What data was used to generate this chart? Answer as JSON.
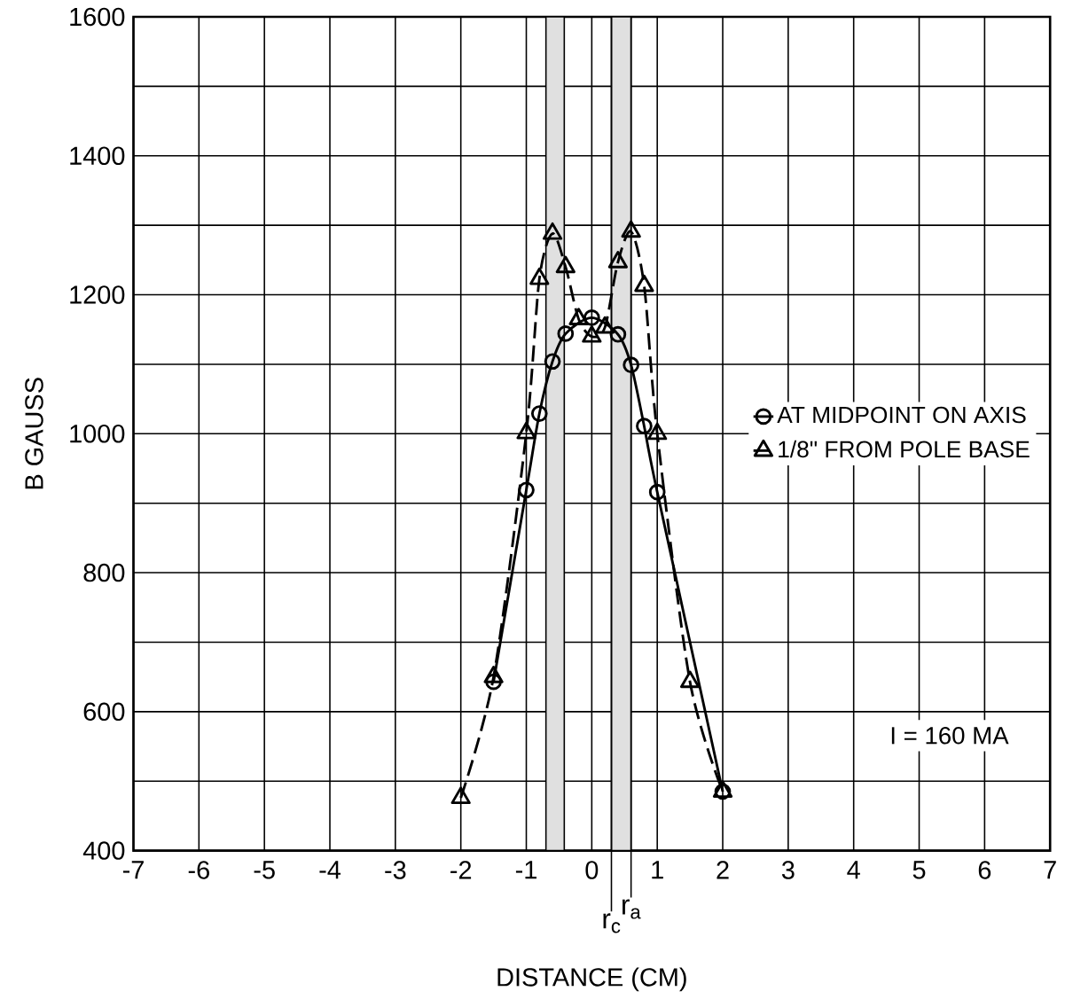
{
  "chart_data": {
    "type": "line",
    "xlabel": "DISTANCE (CM)",
    "ylabel": "B GAUSS",
    "xlim": [
      -7,
      7
    ],
    "ylim": [
      400,
      1600
    ],
    "xticks": [
      -7,
      -6,
      -5,
      -4,
      -3,
      -2,
      -1,
      0,
      1,
      2,
      3,
      4,
      5,
      6,
      7
    ],
    "yticks": [
      400,
      {
        "value": 500,
        "label": null
      },
      600,
      {
        "value": 700,
        "label": null
      },
      800,
      {
        "value": 900,
        "label": null
      },
      1000,
      {
        "value": 1100,
        "label": null
      },
      1200,
      {
        "value": 1300,
        "label": null
      },
      1400,
      {
        "value": 1500,
        "label": null
      },
      1600
    ],
    "grid": true,
    "legend": "right",
    "series": [
      {
        "name": "AT MIDPOINT ON AXIS",
        "color": "#000000",
        "marker": "circle",
        "line_style": "solid",
        "x": [
          -1.5,
          -1,
          -0.8,
          -0.6,
          -0.4,
          0,
          0.4,
          0.6,
          0.8,
          1,
          2
        ],
        "values": [
          643,
          919,
          1029,
          1104,
          1144,
          1167,
          1143,
          1099,
          1011,
          916,
          485
        ]
      },
      {
        "name": "1/8\" FROM POLE BASE",
        "color": "#000000",
        "marker": "triangle",
        "line_style": "dashed",
        "x": [
          -2,
          -1.5,
          -1,
          -0.8,
          -0.6,
          -0.4,
          -0.2,
          0,
          0.2,
          0.4,
          0.6,
          0.8,
          1,
          1.5,
          2
        ],
        "values": [
          476,
          650,
          1001,
          1223,
          1288,
          1240,
          1165,
          1140,
          1153,
          1247,
          1291,
          1213,
          1000,
          643,
          485
        ]
      }
    ],
    "bands": [
      {
        "axis": "x",
        "from": -0.7,
        "to": -0.42
      },
      {
        "axis": "x",
        "from": 0.3,
        "to": 0.6
      }
    ],
    "ref_lines": [
      {
        "axis": "x",
        "value": 0.3,
        "label": "r$_{c}$"
      },
      {
        "axis": "x",
        "value": 0.6,
        "label": "r$_{a}$"
      }
    ],
    "annotations": [
      "I = 160 MA"
    ]
  }
}
